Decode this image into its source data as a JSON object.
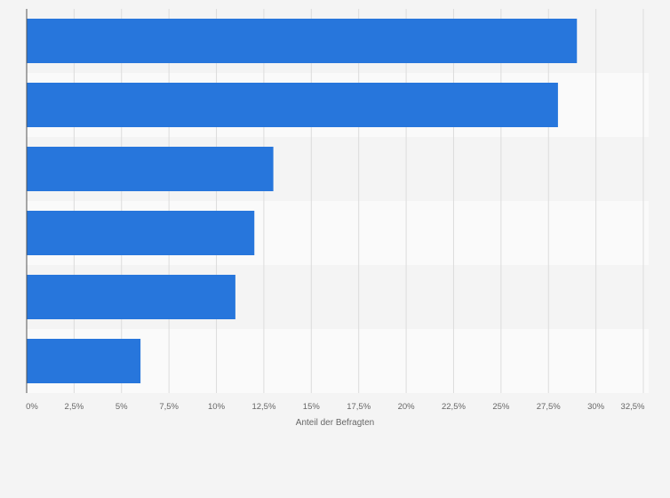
{
  "chart_data": {
    "type": "bar",
    "orientation": "horizontal",
    "categories": [
      "",
      "",
      "",
      "",
      "",
      ""
    ],
    "values": [
      29,
      28,
      13,
      12,
      11,
      6
    ],
    "xlabel": "Anteil der Befragten",
    "ylabel": "",
    "xlim": [
      0,
      32.5
    ],
    "xticks": [
      0,
      2.5,
      5,
      7.5,
      10,
      12.5,
      15,
      17.5,
      20,
      22.5,
      25,
      27.5,
      30,
      32.5
    ],
    "xtick_labels": [
      "0%",
      "2,5%",
      "5%",
      "7,5%",
      "10%",
      "12,5%",
      "15%",
      "17,5%",
      "20%",
      "22,5%",
      "25%",
      "27,5%",
      "30%",
      "32,5%"
    ],
    "grid": true,
    "bar_color": "#2776dc",
    "background_color": "#f4f4f4",
    "band_color": "#fafafa"
  }
}
